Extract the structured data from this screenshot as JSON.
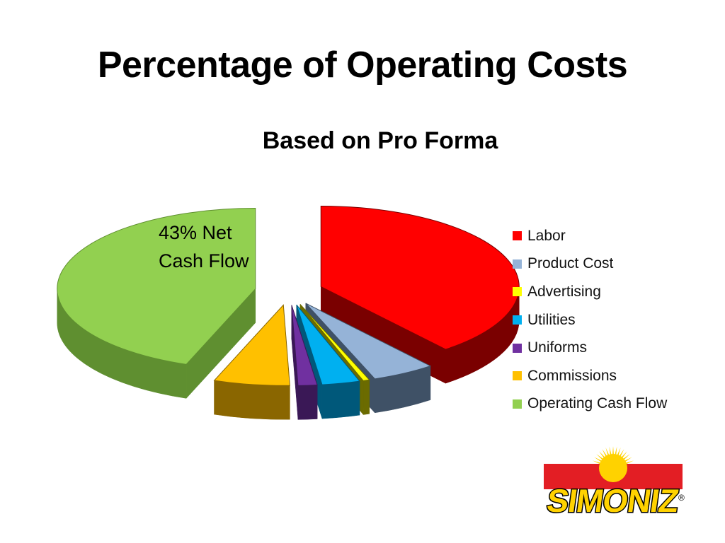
{
  "slide": {
    "title": "Percentage of Operating Costs",
    "annotation": "43% Net Cash Flow"
  },
  "chart_data": {
    "type": "pie",
    "title": "Based on Pro Forma",
    "style": "3d-exploded",
    "legend_position": "right",
    "categories": [
      "Labor",
      "Product Cost",
      "Advertising",
      "Utilities",
      "Uniforms",
      "Commissions",
      "Operating Cash Flow"
    ],
    "values": [
      38,
      5,
      0.5,
      3,
      1.5,
      6,
      43
    ],
    "colors": [
      "#ff0000",
      "#95b3d7",
      "#ffff00",
      "#00b0f0",
      "#7030a0",
      "#ffc000",
      "#92d050"
    ],
    "side_colors": [
      "#7a0000",
      "#3f5166",
      "#6b6b00",
      "#00587a",
      "#3a1856",
      "#8a6600",
      "#5f8f30"
    ]
  },
  "logo": {
    "text": "SIMONIZ",
    "registered": "®",
    "colors": {
      "band": "#e31e24",
      "sun": "#ffd200",
      "text": "#ffd200",
      "outline": "#000000"
    }
  }
}
